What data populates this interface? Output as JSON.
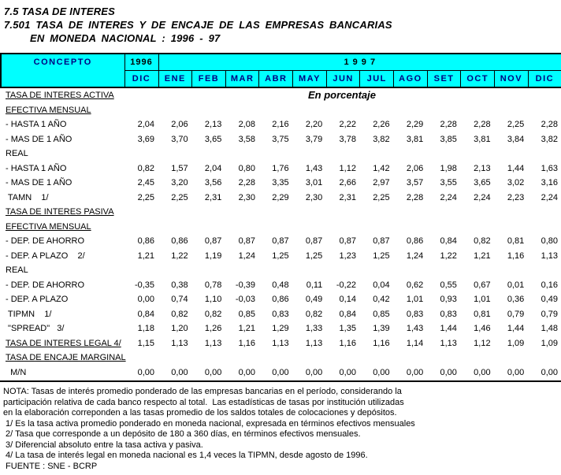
{
  "page": {
    "title1": "7.5 TASA DE INTERES",
    "title2": "7.501 TASA DE INTERES Y DE ENCAJE DE LAS EMPRESAS BANCARIAS",
    "title3": "EN MONEDA NACIONAL : 1996 - 97",
    "unit_note": "En porcentaje"
  },
  "table": {
    "concept_header": "CONCEPTO",
    "year_prev": "1996",
    "year_span": "1 9 9 7",
    "prev_month": "DIC",
    "months": [
      "ENE",
      "FEB",
      "MAR",
      "ABR",
      "MAY",
      "JUN",
      "JUL",
      "AGO",
      "SET",
      "OCT",
      "NOV",
      "DIC"
    ],
    "rows": [
      {
        "label": "TASA DE INTERES ACTIVA",
        "type": "section",
        "underline": true,
        "values": []
      },
      {
        "label": "EFECTIVA MENSUAL",
        "type": "section",
        "underline": true,
        "values": []
      },
      {
        "label": "- HASTA 1 AÑO",
        "type": "data",
        "underline": false,
        "values": [
          "2,04",
          "2,06",
          "2,13",
          "2,08",
          "2,16",
          "2,20",
          "2,22",
          "2,26",
          "2,29",
          "2,28",
          "2,28",
          "2,25",
          "2,28"
        ]
      },
      {
        "label": "- MAS DE 1 AÑO",
        "type": "data",
        "underline": false,
        "values": [
          "3,69",
          "3,70",
          "3,65",
          "3,58",
          "3,75",
          "3,79",
          "3,78",
          "3,82",
          "3,81",
          "3,85",
          "3,81",
          "3,84",
          "3,82"
        ]
      },
      {
        "label": "REAL",
        "type": "section",
        "underline": false,
        "values": []
      },
      {
        "label": "- HASTA 1 AÑO",
        "type": "data",
        "underline": false,
        "values": [
          "0,82",
          "1,57",
          "2,04",
          "0,80",
          "1,76",
          "1,43",
          "1,12",
          "1,42",
          "2,06",
          "1,98",
          "2,13",
          "1,44",
          "1,63"
        ]
      },
      {
        "label": "- MAS DE 1 AÑO",
        "type": "data",
        "underline": false,
        "values": [
          "2,45",
          "3,20",
          "3,56",
          "2,28",
          "3,35",
          "3,01",
          "2,66",
          "2,97",
          "3,57",
          "3,55",
          "3,65",
          "3,02",
          "3,16"
        ]
      },
      {
        "label": " TAMN    1/",
        "type": "data",
        "underline": false,
        "values": [
          "2,25",
          "2,25",
          "2,31",
          "2,30",
          "2,29",
          "2,30",
          "2,31",
          "2,25",
          "2,28",
          "2,24",
          "2,24",
          "2,23",
          "2,24"
        ]
      },
      {
        "label": "TASA DE INTERES PASIVA",
        "type": "section",
        "underline": true,
        "values": []
      },
      {
        "label": "EFECTIVA MENSUAL",
        "type": "section",
        "underline": true,
        "values": []
      },
      {
        "label": "- DEP. DE AHORRO",
        "type": "data",
        "underline": false,
        "values": [
          "0,86",
          "0,86",
          "0,87",
          "0,87",
          "0,87",
          "0,87",
          "0,87",
          "0,87",
          "0,86",
          "0,84",
          "0,82",
          "0,81",
          "0,80"
        ]
      },
      {
        "label": "- DEP. A PLAZO    2/",
        "type": "data",
        "underline": false,
        "values": [
          "1,21",
          "1,22",
          "1,19",
          "1,24",
          "1,25",
          "1,25",
          "1,23",
          "1,25",
          "1,24",
          "1,22",
          "1,21",
          "1,16",
          "1,13"
        ]
      },
      {
        "label": "REAL",
        "type": "section",
        "underline": false,
        "values": []
      },
      {
        "label": "- DEP. DE AHORRO",
        "type": "data",
        "underline": false,
        "values": [
          "-0,35",
          "0,38",
          "0,78",
          "-0,39",
          "0,48",
          "0,11",
          "-0,22",
          "0,04",
          "0,62",
          "0,55",
          "0,67",
          "0,01",
          "0,16"
        ]
      },
      {
        "label": "- DEP. A PLAZO",
        "type": "data",
        "underline": false,
        "values": [
          "0,00",
          "0,74",
          "1,10",
          "-0,03",
          "0,86",
          "0,49",
          "0,14",
          "0,42",
          "1,01",
          "0,93",
          "1,01",
          "0,36",
          "0,49"
        ]
      },
      {
        "label": " TIPMN    1/",
        "type": "data",
        "underline": false,
        "values": [
          "0,84",
          "0,82",
          "0,82",
          "0,85",
          "0,83",
          "0,82",
          "0,84",
          "0,85",
          "0,83",
          "0,83",
          "0,81",
          "0,79",
          "0,79"
        ]
      },
      {
        "label": " \"SPREAD\"   3/",
        "type": "data",
        "underline": false,
        "values": [
          "1,18",
          "1,20",
          "1,26",
          "1,21",
          "1,29",
          "1,33",
          "1,35",
          "1,39",
          "1,43",
          "1,44",
          "1,46",
          "1,44",
          "1,48"
        ]
      },
      {
        "label": "TASA DE INTERES LEGAL 4/",
        "type": "data",
        "underline": true,
        "values": [
          "1,15",
          "1,13",
          "1,13",
          "1,16",
          "1,13",
          "1,13",
          "1,16",
          "1,16",
          "1,14",
          "1,13",
          "1,12",
          "1,09",
          "1,09"
        ]
      },
      {
        "label": "TASA DE ENCAJE MARGINAL",
        "type": "section",
        "underline": true,
        "values": []
      },
      {
        "label": "  M/N",
        "type": "data",
        "underline": false,
        "values": [
          "0,00",
          "0,00",
          "0,00",
          "0,00",
          "0,00",
          "0,00",
          "0,00",
          "0,00",
          "0,00",
          "0,00",
          "0,00",
          "0,00",
          "0,00"
        ]
      }
    ]
  },
  "notes": [
    "NOTA: Tasas de interés promedio ponderado de las empresas bancarias en el período, considerando la",
    "participación relativa de cada banco respecto al total.  Las estadísticas de tasas por institución utilizadas",
    "en la elaboración correponden a las tasas promedio de los saldos totales de colocaciones y depósitos.",
    " 1/ Es la tasa activa promedio ponderado en moneda nacional, expresada en términos efectivos mensuales",
    " 2/ Tasa que corresponde a un depósito de 180 a 360 días, en términos efectivos mensuales.",
    " 3/ Diferencial absoluto entre la tasa activa y pasiva.",
    " 4/ La tasa de interés legal en moneda nacional es 1,4 veces la TIPMN, desde agosto de 1996.",
    " FUENTE : SNE - BCRP"
  ],
  "colors": {
    "header_bg": "#00FFFF",
    "header_month_text": "#000080",
    "border": "#000000",
    "text": "#000000"
  }
}
